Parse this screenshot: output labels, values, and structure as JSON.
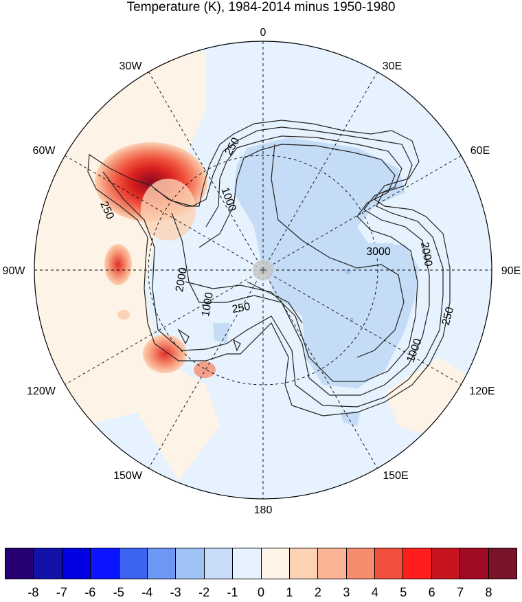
{
  "title": "Temperature (K), 1984-2014 minus 1950-1980",
  "map": {
    "projection": "south polar stereographic",
    "longitude_labels": [
      "0",
      "30E",
      "60E",
      "90E",
      "120E",
      "150E",
      "180",
      "150W",
      "120W",
      "90W",
      "60W",
      "30W"
    ],
    "contour_labels": [
      "250",
      "1000",
      "3000",
      "2000",
      "250",
      "1000",
      "250",
      "1000",
      "2000",
      "250"
    ],
    "field_description_colors": {
      "background_warm": "#fdf3e6",
      "background_cool": "#e6f2fd",
      "interior_cool": "#c4dcf6",
      "deep_cool": "#9fc3f0",
      "warm_peak": "#b40426"
    }
  },
  "colorbar": {
    "colors": [
      "#240070",
      "#1212a8",
      "#0000e0",
      "#0a14ff",
      "#3c64f0",
      "#6e96f5",
      "#a0c3f5",
      "#c8dcfa",
      "#e6f2fd",
      "#fdf3e6",
      "#fcd2b4",
      "#fcb496",
      "#f58c6e",
      "#f0503c",
      "#ff1e1e",
      "#c8141e",
      "#a00a23",
      "#781428"
    ],
    "labels": [
      "-8",
      "-7",
      "-6",
      "-5",
      "-4",
      "-3",
      "-2",
      "-1",
      "0",
      "1",
      "2",
      "3",
      "4",
      "5",
      "6",
      "7",
      "8"
    ]
  }
}
